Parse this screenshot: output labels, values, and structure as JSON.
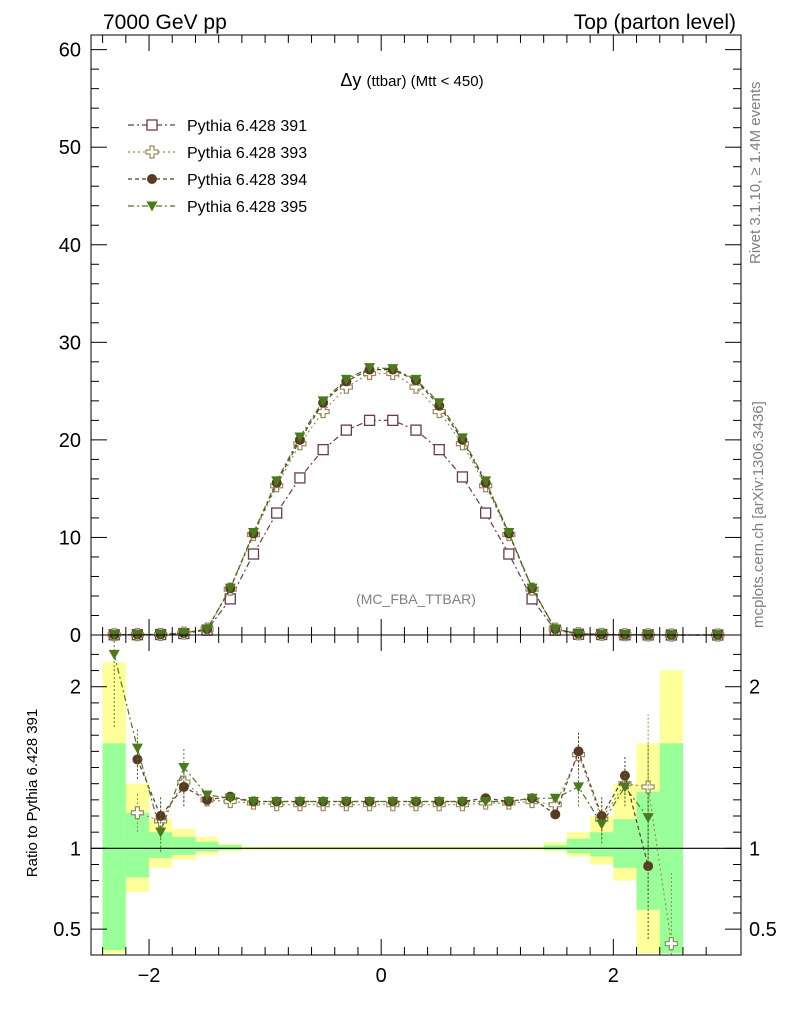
{
  "header": {
    "left": "7000 GeV pp",
    "right": "Top (parton level)"
  },
  "side_labels": {
    "rivet": "Rivet 3.1.10, ≥ 1.4M events",
    "mcplots": "mcplots.cern.ch [arXiv:1306.3436]"
  },
  "chart_data": [
    {
      "type": "line",
      "title_main": "Δy",
      "title_sub": "(ttbar) (Mtt < 450)",
      "watermark": "(MC_FBA_TTBAR)",
      "xlim": [
        -2.5,
        3.1
      ],
      "ylim": [
        0,
        61.5
      ],
      "yticks": [
        0,
        10,
        20,
        30,
        40,
        50,
        60
      ],
      "yticklabels": [
        "0",
        "10",
        "20",
        "30",
        "40",
        "50",
        "60"
      ],
      "legend_position": "top-left",
      "x": [
        -2.3,
        -2.1,
        -1.9,
        -1.7,
        -1.5,
        -1.3,
        -1.1,
        -0.9,
        -0.7,
        -0.5,
        -0.3,
        -0.1,
        0.1,
        0.3,
        0.5,
        0.7,
        0.9,
        1.1,
        1.3,
        1.5,
        1.7,
        1.9,
        2.1,
        2.3,
        2.5,
        2.9
      ],
      "series": [
        {
          "name": "Pythia 6.428 391",
          "color": "#6b3a4e",
          "marker": "open-square",
          "dash": "6,3,2,3",
          "values": [
            0.02,
            0.03,
            0.05,
            0.15,
            0.5,
            3.7,
            8.3,
            12.5,
            16.1,
            19.0,
            21.0,
            22.0,
            22.0,
            21.0,
            19.0,
            16.2,
            12.5,
            8.3,
            3.7,
            0.5,
            0.08,
            0.05,
            0.02,
            0.01,
            0.0,
            0.0
          ]
        },
        {
          "name": "Pythia 6.428 393",
          "color": "#9a8a5a",
          "marker": "open-cross",
          "dash": "2,3",
          "values": [
            0.03,
            0.04,
            0.06,
            0.2,
            0.6,
            4.7,
            10.3,
            15.3,
            19.6,
            22.9,
            25.4,
            26.8,
            26.8,
            25.4,
            22.9,
            19.6,
            15.3,
            10.3,
            4.7,
            0.6,
            0.13,
            0.07,
            0.03,
            0.01,
            0.0,
            0.0
          ]
        },
        {
          "name": "Pythia 6.428 394",
          "color": "#5a3a24",
          "marker": "filled-circle",
          "dash": "4,3",
          "values": [
            0.03,
            0.04,
            0.06,
            0.2,
            0.6,
            4.8,
            10.4,
            15.6,
            20.0,
            23.8,
            26.0,
            27.2,
            27.2,
            26.1,
            23.5,
            20.0,
            15.6,
            10.4,
            4.8,
            0.6,
            0.13,
            0.07,
            0.03,
            0.01,
            0.0,
            0.0
          ]
        },
        {
          "name": "Pythia 6.428 395",
          "color": "#4a7a1c",
          "marker": "filled-triangle-down",
          "dash": "6,3,2,3",
          "values": [
            0.04,
            0.05,
            0.06,
            0.2,
            0.6,
            4.8,
            10.5,
            15.8,
            20.3,
            24.0,
            26.2,
            27.4,
            27.3,
            26.2,
            23.8,
            20.2,
            15.8,
            10.5,
            4.8,
            0.6,
            0.12,
            0.06,
            0.03,
            0.01,
            0.0,
            0.0
          ]
        }
      ]
    },
    {
      "type": "line",
      "ylabel": "Ratio to Pythia 6.428 391",
      "reference_line": 1,
      "ylim": [
        0.34,
        2.32
      ],
      "yticks": [
        0.5,
        1,
        2
      ],
      "yticklabels": [
        "0.5",
        "1",
        "2"
      ],
      "xticks": [
        -2,
        0,
        2
      ],
      "xticklabels": [
        "−2",
        "0",
        "2"
      ],
      "bands": {
        "x_edges": [
          -2.4,
          -2.2,
          -2.0,
          -1.8,
          -1.6,
          -1.4,
          -1.2,
          1.4,
          1.6,
          1.8,
          2.0,
          2.2,
          2.4,
          2.6
        ],
        "yellow": [
          [
            0.35,
            2.15
          ],
          [
            0.73,
            1.4
          ],
          [
            0.88,
            1.18
          ],
          [
            0.93,
            1.12
          ],
          [
            0.96,
            1.07
          ],
          [
            0.98,
            1.03
          ],
          [
            0.99,
            1.01
          ],
          [
            0.98,
            1.04
          ],
          [
            0.95,
            1.1
          ],
          [
            0.9,
            1.2
          ],
          [
            0.8,
            1.4
          ],
          [
            0.35,
            1.65
          ],
          [
            0.35,
            2.1
          ]
        ],
        "green": [
          [
            0.37,
            1.65
          ],
          [
            0.82,
            1.22
          ],
          [
            0.94,
            1.1
          ],
          [
            0.96,
            1.07
          ],
          [
            0.98,
            1.04
          ],
          [
            0.99,
            1.02
          ],
          [
            0.995,
            1.005
          ],
          [
            0.99,
            1.02
          ],
          [
            0.97,
            1.06
          ],
          [
            0.95,
            1.1
          ],
          [
            0.88,
            1.18
          ],
          [
            0.62,
            1.35
          ],
          [
            0.35,
            1.65
          ]
        ]
      },
      "x": [
        -2.3,
        -2.1,
        -1.9,
        -1.7,
        -1.5,
        -1.3,
        -1.1,
        -0.9,
        -0.7,
        -0.5,
        -0.3,
        -0.1,
        0.1,
        0.3,
        0.5,
        0.7,
        0.9,
        1.1,
        1.3,
        1.5,
        1.7,
        1.9,
        2.1,
        2.3,
        2.5
      ],
      "series": [
        {
          "name": "Pythia 6.428 393",
          "values": [
            null,
            1.22,
            1.17,
            1.41,
            1.3,
            1.29,
            1.28,
            1.27,
            1.27,
            1.27,
            1.27,
            1.27,
            1.27,
            1.27,
            1.27,
            1.27,
            1.28,
            1.28,
            1.29,
            1.27,
            1.58,
            1.18,
            1.4,
            1.38,
            0.41
          ]
        },
        {
          "name": "Pythia 6.428 394",
          "values": [
            null,
            1.55,
            1.2,
            1.38,
            1.3,
            1.32,
            1.29,
            1.29,
            1.29,
            1.29,
            1.29,
            1.29,
            1.29,
            1.29,
            1.29,
            1.29,
            1.31,
            1.29,
            1.31,
            1.21,
            1.6,
            1.2,
            1.45,
            0.89,
            null
          ]
        },
        {
          "name": "Pythia 6.428 395",
          "values": [
            2.2,
            1.62,
            1.1,
            1.5,
            1.33,
            1.31,
            1.29,
            1.29,
            1.29,
            1.29,
            1.29,
            1.29,
            1.29,
            1.29,
            1.29,
            1.29,
            1.29,
            1.29,
            1.31,
            1.31,
            1.38,
            1.15,
            1.38,
            1.19,
            null
          ]
        }
      ]
    }
  ]
}
